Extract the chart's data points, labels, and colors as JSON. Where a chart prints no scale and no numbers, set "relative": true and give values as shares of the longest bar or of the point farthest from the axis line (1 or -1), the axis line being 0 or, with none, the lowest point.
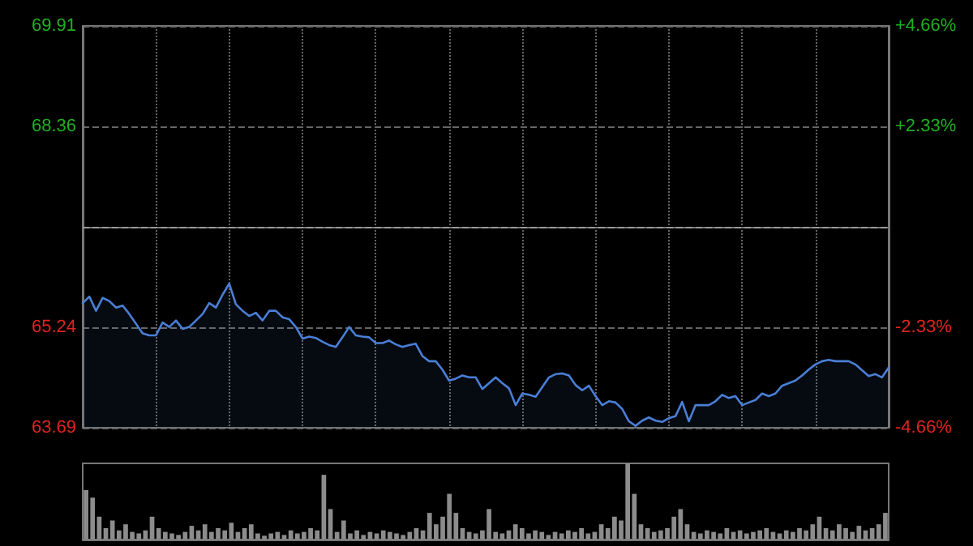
{
  "chart_data": [
    {
      "type": "area",
      "categories": [
        null,
        null,
        null,
        null,
        null,
        null,
        null,
        null,
        null,
        null,
        null,
        null,
        null,
        null,
        null,
        null,
        null,
        null,
        null,
        null,
        null,
        null,
        null,
        null,
        null,
        null,
        null,
        null,
        null,
        null,
        null,
        null,
        null,
        null,
        null,
        null,
        null,
        null,
        null,
        null,
        null,
        null,
        null,
        null,
        null,
        null,
        null,
        null,
        null,
        null,
        null,
        null,
        null,
        null,
        null,
        null,
        null,
        null,
        null,
        null,
        null,
        null,
        null,
        null,
        null,
        null,
        null,
        null,
        null,
        null,
        null,
        null,
        null,
        null,
        null,
        null,
        null,
        null,
        null,
        null,
        null,
        null,
        null,
        null,
        null,
        null,
        null,
        null,
        null,
        null,
        null,
        null,
        null,
        null,
        null,
        null,
        null,
        null,
        null,
        null,
        null,
        null,
        null,
        null,
        null,
        null,
        null,
        null,
        null,
        null,
        null,
        null,
        null,
        null,
        null,
        null,
        null,
        null,
        null,
        null,
        null,
        null
      ],
      "series": [
        {
          "color": "#4a7fd6",
          "values": [
            65.62,
            65.72,
            65.5,
            65.7,
            65.65,
            65.55,
            65.58,
            65.45,
            65.3,
            65.15,
            65.12,
            65.12,
            65.32,
            65.25,
            65.35,
            65.22,
            65.25,
            65.35,
            65.45,
            65.62,
            65.55,
            65.75,
            65.92,
            65.6,
            65.5,
            65.42,
            65.47,
            65.35,
            65.5,
            65.5,
            65.4,
            65.37,
            65.25,
            65.07,
            65.1,
            65.08,
            65.02,
            64.97,
            64.94,
            65.09,
            65.25,
            65.12,
            65.1,
            65.09,
            65.0,
            65.0,
            65.04,
            64.98,
            64.94,
            64.97,
            64.99,
            64.8,
            64.72,
            64.72,
            64.59,
            64.42,
            64.45,
            64.5,
            64.47,
            64.47,
            64.29,
            64.38,
            64.47,
            64.38,
            64.3,
            64.04,
            64.22,
            64.2,
            64.17,
            64.32,
            64.47,
            64.52,
            64.53,
            64.5,
            64.35,
            64.27,
            64.34,
            64.18,
            64.04,
            64.1,
            64.08,
            63.98,
            63.79,
            63.72,
            63.8,
            63.85,
            63.8,
            63.78,
            63.84,
            63.87,
            64.09,
            63.79,
            64.04,
            64.04,
            64.04,
            64.1,
            64.2,
            64.15,
            64.18,
            64.04,
            64.08,
            64.12,
            64.22,
            64.18,
            64.22,
            64.34,
            64.38,
            64.42,
            64.5,
            64.59,
            64.67,
            64.72,
            64.74,
            64.72,
            64.72,
            64.72,
            64.67,
            64.58,
            64.49,
            64.52,
            64.47,
            64.62
          ]
        }
      ],
      "ylim": [
        63.69,
        69.91
      ],
      "yticks": [
        63.69,
        65.24,
        68.36,
        69.91
      ],
      "y2lim": [
        -4.66,
        4.66
      ],
      "y2ticks": [
        {
          "value": -4.66,
          "label": "-4.66%"
        },
        {
          "value": -2.33,
          "label": "-2.33%"
        },
        {
          "value": 2.33,
          "label": "+2.33%"
        },
        {
          "value": 4.66,
          "label": "+4.66%"
        }
      ],
      "ref_lines": [
        {
          "axis": "y",
          "value": 66.8,
          "color": "#9a9a9a",
          "line_style": "dashed"
        }
      ],
      "grid": true,
      "tick_labels": "y",
      "line_style": "solid"
    },
    {
      "type": "bar",
      "relative": true,
      "color": "#8c8c8c",
      "categories": [
        null,
        null,
        null,
        null,
        null,
        null,
        null,
        null,
        null,
        null,
        null,
        null,
        null,
        null,
        null,
        null,
        null,
        null,
        null,
        null,
        null,
        null,
        null,
        null,
        null,
        null,
        null,
        null,
        null,
        null,
        null,
        null,
        null,
        null,
        null,
        null,
        null,
        null,
        null,
        null,
        null,
        null,
        null,
        null,
        null,
        null,
        null,
        null,
        null,
        null,
        null,
        null,
        null,
        null,
        null,
        null,
        null,
        null,
        null,
        null,
        null,
        null,
        null,
        null,
        null,
        null,
        null,
        null,
        null,
        null,
        null,
        null,
        null,
        null,
        null,
        null,
        null,
        null,
        null,
        null,
        null,
        null,
        null,
        null,
        null,
        null,
        null,
        null,
        null,
        null,
        null,
        null,
        null,
        null,
        null,
        null,
        null,
        null,
        null,
        null,
        null,
        null,
        null,
        null,
        null,
        null,
        null,
        null,
        null,
        null,
        null,
        null,
        null,
        null,
        null,
        null,
        null,
        null,
        null,
        null,
        null,
        null
      ],
      "values": [
        0.65,
        0.55,
        0.3,
        0.15,
        0.25,
        0.12,
        0.2,
        0.1,
        0.08,
        0.12,
        0.3,
        0.15,
        0.1,
        0.08,
        0.06,
        0.1,
        0.18,
        0.12,
        0.2,
        0.1,
        0.15,
        0.12,
        0.22,
        0.1,
        0.15,
        0.2,
        0.08,
        0.05,
        0.08,
        0.1,
        0.06,
        0.12,
        0.08,
        0.1,
        0.15,
        0.12,
        0.85,
        0.4,
        0.1,
        0.25,
        0.08,
        0.12,
        0.06,
        0.1,
        0.08,
        0.12,
        0.1,
        0.08,
        0.06,
        0.1,
        0.15,
        0.12,
        0.35,
        0.2,
        0.3,
        0.6,
        0.35,
        0.15,
        0.1,
        0.08,
        0.12,
        0.4,
        0.1,
        0.08,
        0.12,
        0.2,
        0.15,
        0.08,
        0.12,
        0.1,
        0.06,
        0.1,
        0.08,
        0.12,
        0.1,
        0.15,
        0.08,
        0.1,
        0.2,
        0.15,
        0.3,
        0.25,
        1.0,
        0.6,
        0.2,
        0.15,
        0.1,
        0.12,
        0.15,
        0.3,
        0.4,
        0.2,
        0.1,
        0.08,
        0.12,
        0.1,
        0.08,
        0.15,
        0.1,
        0.12,
        0.08,
        0.1,
        0.12,
        0.15,
        0.1,
        0.08,
        0.12,
        0.1,
        0.15,
        0.12,
        0.2,
        0.3,
        0.15,
        0.12,
        0.2,
        0.15,
        0.1,
        0.18,
        0.12,
        0.15,
        0.2,
        0.35
      ]
    }
  ]
}
